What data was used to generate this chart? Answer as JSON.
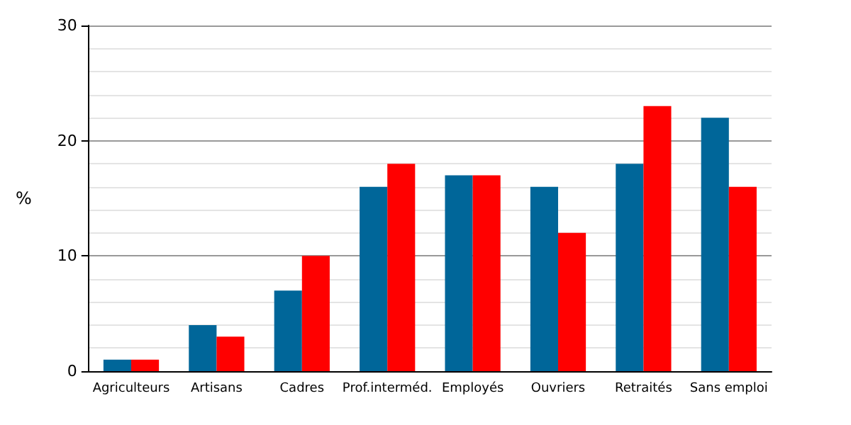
{
  "chart_data": {
    "type": "bar",
    "ylabel": "%",
    "categories": [
      "Agriculteurs",
      "Artisans",
      "Cadres",
      "Prof.interméd.",
      "Employés",
      "Ouvriers",
      "Retraités",
      "Sans emploi"
    ],
    "series": [
      {
        "color": "#006699",
        "values": [
          1,
          4,
          7,
          16,
          17,
          16,
          18,
          22
        ]
      },
      {
        "color": "#ff0000",
        "values": [
          1,
          3,
          10,
          18,
          17,
          12,
          23,
          16
        ]
      }
    ],
    "ylim": [
      0,
      30
    ],
    "yticks": [
      0,
      10,
      20,
      30
    ],
    "grid": "y"
  }
}
